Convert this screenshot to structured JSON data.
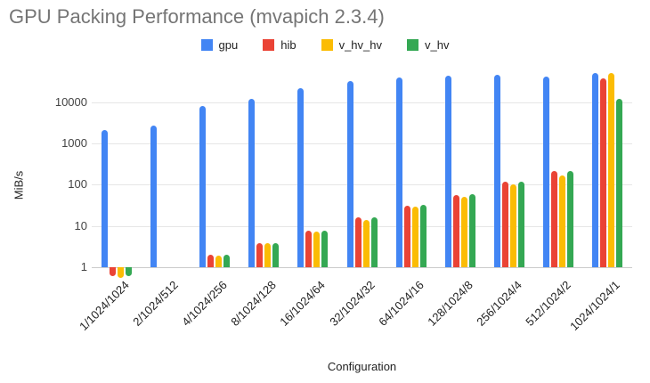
{
  "chart_data": {
    "type": "bar",
    "title": "GPU Packing Performance (mvapich 2.3.4)",
    "xlabel": "Configuration",
    "ylabel": "MiB/s",
    "y_scale": "log",
    "y_ticks": [
      1,
      10,
      100,
      1000,
      10000
    ],
    "ylim": [
      0.5,
      56000
    ],
    "grid": true,
    "legend_position": "top",
    "categories": [
      "1/1024/1024",
      "2/1024/512",
      "4/1024/256",
      "8/1024/128",
      "16/1024/64",
      "32/1024/32",
      "64/1024/16",
      "128/1024/8",
      "256/1024/4",
      "512/1024/2",
      "1024/1024/1"
    ],
    "series": [
      {
        "name": "gpu",
        "color": "#4285F4",
        "values": [
          2100,
          2700,
          8000,
          12000,
          22000,
          32000,
          40000,
          43000,
          46000,
          42000,
          50000
        ]
      },
      {
        "name": "hib",
        "color": "#EA4335",
        "values": [
          0.6,
          null,
          2.0,
          3.9,
          7.5,
          16,
          31,
          56,
          120,
          220,
          38000
        ]
      },
      {
        "name": "v_hv_hv",
        "color": "#FBBC04",
        "values": [
          0.55,
          null,
          1.9,
          3.8,
          7.4,
          14,
          30,
          50,
          100,
          170,
          50000
        ]
      },
      {
        "name": "v_hv",
        "color": "#34A853",
        "values": [
          0.6,
          null,
          2.0,
          3.9,
          7.7,
          16,
          32,
          58,
          120,
          215,
          12000
        ]
      }
    ],
    "colors": {
      "title_text": "#757575",
      "axis_text": "#444444",
      "category_text": "#222222",
      "gridline": "#e6e6e6",
      "baseline": "#cccccc",
      "background": "#ffffff"
    }
  }
}
